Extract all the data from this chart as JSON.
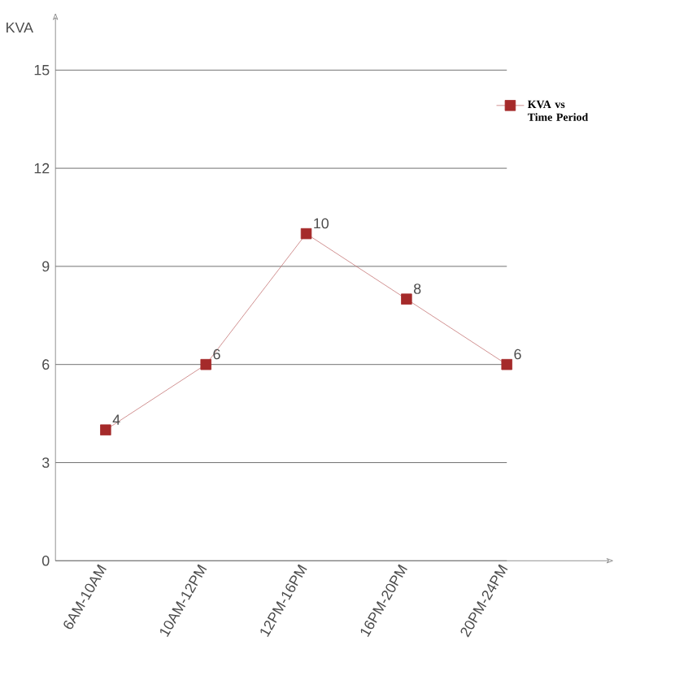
{
  "chart_data": {
    "type": "line",
    "ylabel": "KVA",
    "categories": [
      "6AM-10AM",
      "10AM-12PM",
      "12PM-16PM",
      "16PM-20PM",
      "20PM-24PM"
    ],
    "series": [
      {
        "name": "KVA vs Time Period",
        "color": "#a52a2a",
        "values": [
          4,
          6,
          10,
          8,
          6
        ]
      }
    ],
    "ylim": [
      0,
      16.6
    ],
    "yticks": [
      0,
      3,
      6,
      9,
      12,
      15
    ],
    "grid": "y",
    "legend": "top right",
    "marker": "square",
    "data_labels": true
  }
}
